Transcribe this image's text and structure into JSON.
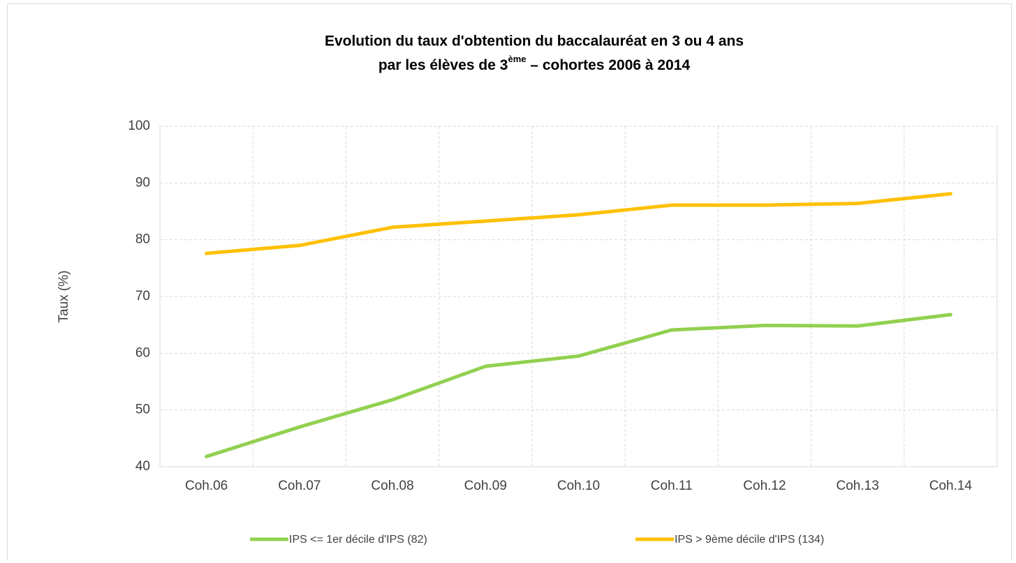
{
  "chart_data": {
    "type": "line",
    "title": {
      "line1": "Evolution du taux d'obtention du baccalauréat en 3 ou 4 ans",
      "line2_start": "par les élèves de 3",
      "line2_superscript": "ème",
      "line2_end": " – cohortes 2006 à 2014"
    },
    "y_label": "Taux (%)",
    "categories": [
      "Coh.06",
      "Coh.07",
      "Coh.08",
      "Coh.09",
      "Coh.10",
      "Coh.11",
      "Coh.12",
      "Coh.13",
      "Coh.14"
    ],
    "series": [
      {
        "name": "IPS <= 1er décile d'IPS (82)",
        "color": "#92d050",
        "values": [
          41.8,
          47,
          51.8,
          57.7,
          59.5,
          64.1,
          64.9,
          64.8,
          66.8
        ]
      },
      {
        "name": "IPS > 9ème décile d'IPS (134)",
        "color": "#ffc000",
        "values": [
          77.6,
          79,
          82.2,
          83.3,
          84.4,
          86.1,
          86.1,
          86.4,
          88.1
        ]
      }
    ],
    "ylim": [
      40,
      100
    ],
    "yticks": [
      40,
      50,
      60,
      70,
      80,
      90,
      100
    ],
    "grid": true,
    "legend": "bottom"
  }
}
